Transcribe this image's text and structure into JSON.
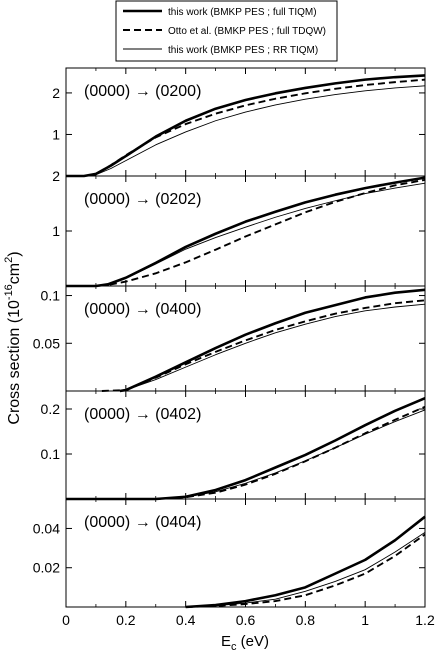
{
  "legend": [
    {
      "label": "this work (BMKP PES ; full TIQM)",
      "style": "thick"
    },
    {
      "label": "Otto et al. (BMKP PES ; full TDQW)",
      "style": "dashed"
    },
    {
      "label": "this work (BMKP PES ; RR TIQM)",
      "style": "thin"
    }
  ],
  "chart_data": {
    "type": "line",
    "ylabel": "Cross section (10",
    "ylabel_exp": "-16",
    "ylabel_unit": "cm",
    "ylabel_unit_exp": "2",
    "ylabel_close": ")",
    "xlabel": "E",
    "xlabel_sub": "c",
    "xlabel_unit": " (eV)",
    "xlim": [
      0,
      1.2
    ],
    "xticks": [
      0,
      0.2,
      0.4,
      0.6,
      0.8,
      1,
      1.2
    ],
    "xtick_labels": [
      "0",
      "0.2",
      "0.4",
      "0.6",
      "0.8",
      "1",
      "1.2"
    ],
    "series_names": [
      "this work (BMKP PES ; full TIQM)",
      "Otto et al. (BMKP PES ; full TDQW)",
      "this work (BMKP PES ; RR TIQM)"
    ],
    "panels": [
      {
        "title": "(0000) → (0200)",
        "ylim": [
          0,
          2.6
        ],
        "yticks": [
          1,
          2
        ],
        "ytick_labels": [
          "1",
          "2"
        ],
        "series": [
          {
            "style": "thick",
            "x": [
              0,
              0.06,
              0.1,
              0.15,
              0.2,
              0.3,
              0.4,
              0.5,
              0.6,
              0.7,
              0.8,
              0.9,
              1.0,
              1.1,
              1.2
            ],
            "y": [
              0,
              0,
              0.05,
              0.25,
              0.48,
              0.95,
              1.33,
              1.62,
              1.83,
              1.99,
              2.12,
              2.23,
              2.32,
              2.38,
              2.42
            ]
          },
          {
            "style": "dashed",
            "x": [
              0,
              0.06,
              0.1,
              0.15,
              0.2,
              0.3,
              0.4,
              0.5,
              0.6,
              0.7,
              0.8,
              0.9,
              1.0,
              1.1,
              1.2
            ],
            "y": [
              0,
              0,
              0.05,
              0.26,
              0.5,
              0.93,
              1.25,
              1.5,
              1.7,
              1.86,
              1.99,
              2.1,
              2.19,
              2.26,
              2.32
            ]
          },
          {
            "style": "thin",
            "x": [
              0,
              0.06,
              0.1,
              0.15,
              0.2,
              0.3,
              0.4,
              0.5,
              0.6,
              0.7,
              0.8,
              0.9,
              1.0,
              1.1,
              1.2
            ],
            "y": [
              0,
              0,
              0.03,
              0.18,
              0.37,
              0.75,
              1.06,
              1.33,
              1.54,
              1.71,
              1.85,
              1.96,
              2.05,
              2.12,
              2.17
            ]
          }
        ]
      },
      {
        "title": "(0000) → (0202)",
        "ylim": [
          0,
          2.0
        ],
        "yticks": [
          1,
          2
        ],
        "ytick_labels": [
          "1",
          "2"
        ],
        "series": [
          {
            "style": "thick",
            "x": [
              0,
              0.1,
              0.14,
              0.2,
              0.3,
              0.4,
              0.5,
              0.6,
              0.7,
              0.8,
              0.9,
              1.0,
              1.1,
              1.2
            ],
            "y": [
              0,
              0,
              0.03,
              0.15,
              0.42,
              0.71,
              0.95,
              1.17,
              1.35,
              1.52,
              1.66,
              1.78,
              1.88,
              1.97
            ]
          },
          {
            "style": "dashed",
            "x": [
              0,
              0.1,
              0.14,
              0.2,
              0.3,
              0.4,
              0.5,
              0.6,
              0.7,
              0.8,
              0.9,
              1.0,
              1.1,
              1.2
            ],
            "y": [
              0,
              0,
              0.02,
              0.08,
              0.23,
              0.43,
              0.66,
              0.9,
              1.12,
              1.34,
              1.53,
              1.69,
              1.83,
              1.93
            ]
          },
          {
            "style": "thin",
            "x": [
              0,
              0.1,
              0.14,
              0.2,
              0.3,
              0.4,
              0.5,
              0.6,
              0.7,
              0.8,
              0.9,
              1.0,
              1.1,
              1.2
            ],
            "y": [
              0,
              0,
              0.03,
              0.14,
              0.4,
              0.67,
              0.88,
              1.07,
              1.25,
              1.41,
              1.55,
              1.68,
              1.78,
              1.87
            ]
          }
        ]
      },
      {
        "title": "(0000) → (0400)",
        "ylim": [
          0,
          0.11
        ],
        "yticks": [
          0.05,
          0.1
        ],
        "ytick_labels": [
          "0.05",
          "0.1"
        ],
        "series": [
          {
            "style": "thick",
            "x": [
              0.18,
              0.2,
              0.3,
              0.4,
              0.5,
              0.6,
              0.7,
              0.8,
              0.9,
              1.0,
              1.1,
              1.2
            ],
            "y": [
              0,
              0.001,
              0.015,
              0.03,
              0.045,
              0.059,
              0.071,
              0.082,
              0.09,
              0.098,
              0.103,
              0.106
            ]
          },
          {
            "style": "dashed",
            "x": [
              0.12,
              0.2,
              0.3,
              0.4,
              0.5,
              0.6,
              0.7,
              0.8,
              0.9,
              1.0,
              1.1,
              1.2
            ],
            "y": [
              0,
              0.001,
              0.014,
              0.028,
              0.041,
              0.053,
              0.064,
              0.073,
              0.081,
              0.087,
              0.092,
              0.095
            ]
          },
          {
            "style": "thin",
            "x": [
              0.18,
              0.2,
              0.3,
              0.4,
              0.5,
              0.6,
              0.7,
              0.8,
              0.9,
              1.0,
              1.1,
              1.2
            ],
            "y": [
              0,
              0.001,
              0.012,
              0.025,
              0.038,
              0.05,
              0.061,
              0.07,
              0.078,
              0.084,
              0.088,
              0.091
            ]
          }
        ]
      },
      {
        "title": "(0000) → (0402)",
        "ylim": [
          0,
          0.24
        ],
        "yticks": [
          0.1,
          0.2
        ],
        "ytick_labels": [
          "0.1",
          "0.2"
        ],
        "series": [
          {
            "style": "thick",
            "x": [
              0,
              0.3,
              0.4,
              0.5,
              0.6,
              0.7,
              0.8,
              0.9,
              1.0,
              1.1,
              1.2
            ],
            "y": [
              0,
              0,
              0.005,
              0.02,
              0.042,
              0.07,
              0.098,
              0.13,
              0.164,
              0.196,
              0.224
            ]
          },
          {
            "style": "dashed",
            "x": [
              0,
              0.3,
              0.4,
              0.5,
              0.6,
              0.7,
              0.8,
              0.9,
              1.0,
              1.1,
              1.2
            ],
            "y": [
              0,
              0,
              0.004,
              0.014,
              0.032,
              0.056,
              0.084,
              0.114,
              0.146,
              0.176,
              0.205
            ]
          },
          {
            "style": "thin",
            "x": [
              0,
              0.3,
              0.4,
              0.5,
              0.6,
              0.7,
              0.8,
              0.9,
              1.0,
              1.1,
              1.2
            ],
            "y": [
              0,
              0,
              0.004,
              0.016,
              0.035,
              0.058,
              0.085,
              0.114,
              0.144,
              0.172,
              0.198
            ]
          }
        ]
      },
      {
        "title": "(0000) → (0404)",
        "ylim": [
          0,
          0.055
        ],
        "yticks": [
          0.02,
          0.04
        ],
        "ytick_labels": [
          "0.02",
          "0.04"
        ],
        "series": [
          {
            "style": "thick",
            "x": [
              0.4,
              0.5,
              0.6,
              0.7,
              0.8,
              0.9,
              1.0,
              1.1,
              1.2
            ],
            "y": [
              0,
              0.001,
              0.003,
              0.006,
              0.01,
              0.017,
              0.024,
              0.034,
              0.046
            ]
          },
          {
            "style": "dashed",
            "x": [
              0.4,
              0.5,
              0.6,
              0.7,
              0.8,
              0.9,
              1.0,
              1.1,
              1.2
            ],
            "y": [
              0,
              0.0005,
              0.0015,
              0.003,
              0.006,
              0.011,
              0.017,
              0.026,
              0.037
            ]
          },
          {
            "style": "thin",
            "x": [
              0.4,
              0.5,
              0.6,
              0.7,
              0.8,
              0.9,
              1.0,
              1.1,
              1.2
            ],
            "y": [
              0,
              0.0006,
              0.002,
              0.004,
              0.008,
              0.013,
              0.019,
              0.028,
              0.038
            ]
          }
        ]
      }
    ]
  }
}
